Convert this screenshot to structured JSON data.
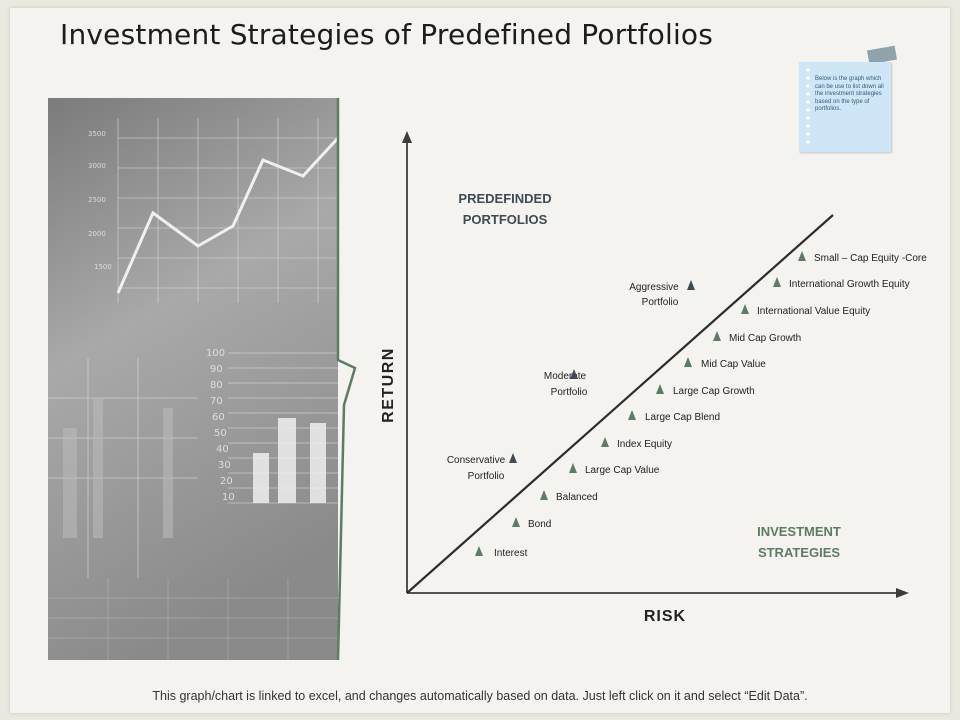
{
  "title": "Investment Strategies of Predefined Portfolios",
  "note": "Below is the graph which can be use to list down all the investment strategies based on the type of portfolios.",
  "photo": {
    "line_labels": [
      "3500",
      "3000",
      "2500",
      "2000",
      "1500"
    ],
    "bar_labels": [
      "100",
      "90",
      "80",
      "70",
      "60",
      "50",
      "40",
      "30",
      "20",
      "10"
    ]
  },
  "diagram": {
    "y_axis_label": "RETURN",
    "x_axis_label": "RISK",
    "portfolios_heading": [
      "PREDEFINDED",
      "PORTFOLIOS"
    ],
    "strategies_heading": [
      "INVESTMENT",
      "STRATEGIES"
    ],
    "strategies": [
      "Interest",
      "Bond",
      "Balanced",
      "Large Cap Value",
      "Index Equity",
      "Large Cap Blend",
      "Large Cap Growth",
      "Mid Cap Value",
      "Mid Cap Growth",
      "International Value Equity",
      "International Growth Equity",
      "Small – Cap Equity -Core"
    ],
    "portfolios": [
      {
        "line1": "Conservative",
        "line2": "Portfolio"
      },
      {
        "line1": "Moderate",
        "line2": "Portfolio"
      },
      {
        "line1": "Aggressive",
        "line2": "Portfolio"
      }
    ]
  },
  "colors": {
    "green": "#5b7d63",
    "dark": "#3f4a55",
    "axis": "#3c3c3c"
  },
  "footer": "This graph/chart is linked to excel, and changes automatically based on data.  Just left click on it and select “Edit Data”."
}
